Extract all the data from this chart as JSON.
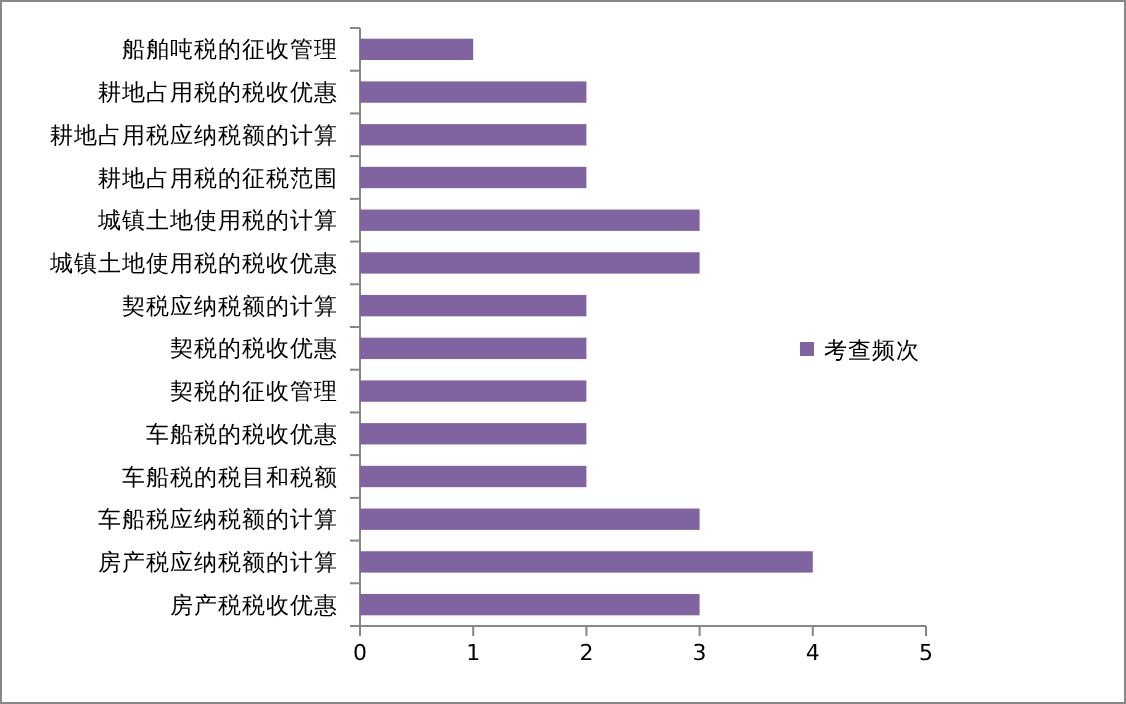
{
  "chart_data": {
    "type": "bar",
    "orientation": "horizontal",
    "categories": [
      "船舶吨税的征收管理",
      "耕地占用税的税收优惠",
      "耕地占用税应纳税额的计算",
      "耕地占用税的征税范围",
      "城镇土地使用税的计算",
      "城镇土地使用税的税收优惠",
      "契税应纳税额的计算",
      "契税的税收优惠",
      "契税的征收管理",
      "车船税的税收优惠",
      "车船税的税目和税额",
      "车船税应纳税额的计算",
      "房产税应纳税额的计算",
      "房产税税收优惠"
    ],
    "series": [
      {
        "name": "考查频次",
        "color": "#8064a2",
        "values": [
          1,
          2,
          2,
          2,
          3,
          3,
          2,
          2,
          2,
          2,
          2,
          3,
          4,
          3
        ]
      }
    ],
    "xlim": [
      0,
      5
    ],
    "xticks": [
      0,
      1,
      2,
      3,
      4,
      5
    ],
    "grid": false,
    "legend": "right"
  }
}
